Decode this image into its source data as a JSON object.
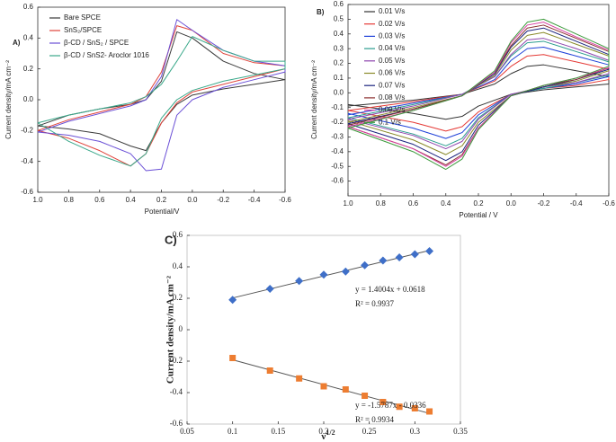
{
  "chart_data": [
    {
      "type": "line",
      "panel_label": "A)",
      "xlabel": "Potential/V",
      "ylabel": "Current density/mA cm⁻²",
      "xlim": [
        1.0,
        -0.6
      ],
      "ylim": [
        -0.6,
        0.6
      ],
      "xticks": [
        {
          "value": 1.0,
          "label": "1.0"
        },
        0.8,
        0.6,
        0.4,
        0.2,
        {
          "value": 0,
          "label": "0.0"
        },
        -0.2,
        -0.4,
        -0.6
      ],
      "yticks": [
        -0.6,
        -0.4,
        -0.2,
        {
          "value": 0,
          "label": "0.0"
        },
        0.2,
        0.4,
        0.6
      ],
      "x": [
        1.0,
        0.8,
        0.6,
        0.4,
        0.3,
        0.2,
        0.1,
        0.0,
        -0.2,
        -0.4,
        -0.6,
        -0.6,
        -0.4,
        -0.2,
        0.0,
        0.1,
        0.2,
        0.3,
        0.4,
        0.6,
        0.8,
        1.0
      ],
      "legend": "upper left",
      "series": [
        {
          "name": "Bare  SPCE",
          "color": "#3a3a3a",
          "values": [
            -0.17,
            -0.1,
            -0.06,
            -0.03,
            0.0,
            0.12,
            0.44,
            0.4,
            0.25,
            0.17,
            0.13,
            0.13,
            0.1,
            0.07,
            0.03,
            -0.03,
            -0.15,
            -0.33,
            -0.3,
            -0.22,
            -0.19,
            -0.17
          ]
        },
        {
          "name": "SnS₂/SPCE",
          "color": "#e0433a",
          "values": [
            -0.2,
            -0.13,
            -0.08,
            -0.03,
            0.02,
            0.18,
            0.48,
            0.45,
            0.3,
            0.24,
            0.22,
            0.2,
            0.15,
            0.1,
            0.05,
            -0.02,
            -0.15,
            -0.35,
            -0.43,
            -0.33,
            -0.25,
            -0.2
          ]
        },
        {
          "name": "β-CD / SnS₂ / SPCE",
          "color": "#6a4fd6",
          "values": [
            -0.21,
            -0.14,
            -0.09,
            -0.04,
            0.0,
            0.15,
            0.52,
            0.45,
            0.32,
            0.25,
            0.22,
            0.18,
            0.13,
            0.08,
            0.0,
            -0.1,
            -0.45,
            -0.46,
            -0.35,
            -0.27,
            -0.23,
            -0.21
          ]
        },
        {
          "name": "β-CD / SnS2- Aroclor 1016",
          "color": "#3aa88a",
          "values": [
            -0.15,
            -0.1,
            -0.06,
            -0.02,
            0.02,
            0.1,
            0.25,
            0.41,
            0.32,
            0.25,
            0.25,
            0.2,
            0.16,
            0.12,
            0.06,
            0.0,
            -0.12,
            -0.35,
            -0.43,
            -0.36,
            -0.27,
            -0.15
          ]
        }
      ]
    },
    {
      "type": "line",
      "panel_label": "B)",
      "xlabel": "Potential / V",
      "ylabel": "Current density/mA cm⁻²",
      "xlim": [
        1.0,
        -0.6
      ],
      "ylim": [
        -0.7,
        0.6
      ],
      "xticks": [
        {
          "value": 1.0,
          "label": "1.0"
        },
        0.8,
        0.6,
        0.4,
        0.2,
        {
          "value": 0,
          "label": "0.0"
        },
        -0.2,
        -0.4,
        -0.6
      ],
      "yticks": [
        -0.6,
        -0.5,
        -0.4,
        -0.3,
        -0.2,
        -0.1,
        {
          "value": 0,
          "label": "0.0"
        },
        0.1,
        0.2,
        0.3,
        0.4,
        0.5,
        0.6
      ],
      "x": [
        1.0,
        0.6,
        0.3,
        0.1,
        0.0,
        -0.1,
        -0.2,
        -0.4,
        -0.6,
        -0.6,
        -0.4,
        -0.2,
        0.0,
        0.2,
        0.3,
        0.4,
        0.6,
        1.0
      ],
      "legend": "upper left",
      "series": [
        {
          "name": "0.01  V/s",
          "color": "#333333",
          "values": [
            -0.09,
            -0.05,
            -0.01,
            0.06,
            0.13,
            0.18,
            0.19,
            0.15,
            0.11,
            0.06,
            0.04,
            0.02,
            -0.01,
            -0.09,
            -0.16,
            -0.18,
            -0.14,
            -0.08
          ]
        },
        {
          "name": "0.02  V/s",
          "color": "#e53935",
          "values": [
            -0.12,
            -0.06,
            -0.01,
            0.08,
            0.18,
            0.25,
            0.26,
            0.21,
            0.16,
            0.09,
            0.05,
            0.03,
            -0.01,
            -0.13,
            -0.23,
            -0.26,
            -0.2,
            -0.12
          ]
        },
        {
          "name": "0.03  V/s",
          "color": "#1e40d8",
          "values": [
            -0.15,
            -0.07,
            -0.01,
            0.09,
            0.22,
            0.3,
            0.31,
            0.25,
            0.19,
            0.11,
            0.06,
            0.03,
            -0.01,
            -0.15,
            -0.27,
            -0.31,
            -0.24,
            -0.14
          ]
        },
        {
          "name": "0.04  V/s",
          "color": "#2a9d8f",
          "values": [
            -0.17,
            -0.08,
            -0.01,
            0.11,
            0.25,
            0.34,
            0.35,
            0.28,
            0.21,
            0.12,
            0.07,
            0.03,
            -0.01,
            -0.17,
            -0.31,
            -0.36,
            -0.28,
            -0.17
          ]
        },
        {
          "name": "0.05  V/s",
          "color": "#8e44ad",
          "values": [
            -0.18,
            -0.09,
            -0.01,
            0.11,
            0.26,
            0.36,
            0.37,
            0.3,
            0.22,
            0.13,
            0.07,
            0.04,
            -0.01,
            -0.18,
            -0.33,
            -0.38,
            -0.29,
            -0.18
          ]
        },
        {
          "name": "0.06  V/s",
          "color": "#8a8a2a",
          "values": [
            -0.2,
            -0.1,
            -0.02,
            0.12,
            0.29,
            0.39,
            0.41,
            0.33,
            0.25,
            0.15,
            0.08,
            0.04,
            -0.02,
            -0.2,
            -0.36,
            -0.42,
            -0.32,
            -0.19
          ]
        },
        {
          "name": "0.07  V/s",
          "color": "#1a237e",
          "values": [
            -0.21,
            -0.11,
            -0.02,
            0.13,
            0.31,
            0.42,
            0.44,
            0.35,
            0.26,
            0.16,
            0.09,
            0.04,
            -0.02,
            -0.22,
            -0.4,
            -0.46,
            -0.35,
            -0.21
          ]
        },
        {
          "name": "0.08  V/s",
          "color": "#8b2e2e",
          "values": [
            -0.22,
            -0.11,
            -0.02,
            0.14,
            0.32,
            0.44,
            0.46,
            0.37,
            0.28,
            0.17,
            0.09,
            0.05,
            -0.02,
            -0.24,
            -0.42,
            -0.49,
            -0.38,
            -0.23
          ]
        },
        {
          "name": "0.09  V/s",
          "color": "#d63fa0",
          "values": [
            -0.23,
            -0.12,
            -0.02,
            0.14,
            0.34,
            0.46,
            0.48,
            0.38,
            0.29,
            0.17,
            0.1,
            0.05,
            -0.02,
            -0.24,
            -0.43,
            -0.5,
            -0.38,
            -0.23
          ]
        },
        {
          "name": "0.1   V/s",
          "color": "#3c9a3c",
          "values": [
            -0.24,
            -0.12,
            -0.02,
            0.15,
            0.35,
            0.48,
            0.5,
            0.4,
            0.3,
            0.18,
            0.1,
            0.05,
            -0.02,
            -0.25,
            -0.45,
            -0.52,
            -0.4,
            -0.24
          ]
        }
      ]
    },
    {
      "type": "scatter",
      "panel_label": "C)",
      "xlabel": "ν",
      "xlabel_superscript": "1/2",
      "ylabel": "Current density/mA cm⁻²",
      "xlim": [
        0.05,
        0.35
      ],
      "ylim": [
        -0.6,
        0.6
      ],
      "xticks": [
        0.05,
        0.1,
        0.15,
        0.2,
        0.25,
        0.3,
        0.35
      ],
      "yticks": [
        -0.6,
        -0.4,
        -0.2,
        0,
        0.2,
        0.4,
        0.6
      ],
      "x": [
        0.1,
        0.141,
        0.173,
        0.2,
        0.224,
        0.245,
        0.265,
        0.283,
        0.3,
        0.316
      ],
      "series": [
        {
          "color": "#3f6fc8",
          "marker": "diamond",
          "values": [
            0.19,
            0.26,
            0.31,
            0.35,
            0.37,
            0.41,
            0.44,
            0.46,
            0.48,
            0.5
          ],
          "fit_label": "y = 1.4004x + 0.0618",
          "slope": 1.4004,
          "intercept": 0.0618,
          "r2_label": "R² = 0.9937"
        },
        {
          "color": "#ed7d31",
          "marker": "square",
          "values": [
            -0.18,
            -0.26,
            -0.31,
            -0.36,
            -0.38,
            -0.42,
            -0.46,
            -0.49,
            -0.5,
            -0.52
          ],
          "fit_label": "y = -1.5787x - 0.0336",
          "slope": -1.5787,
          "intercept": -0.0336,
          "r2_label": "R² = 0.9934"
        }
      ],
      "fit_color": "#555555"
    }
  ]
}
